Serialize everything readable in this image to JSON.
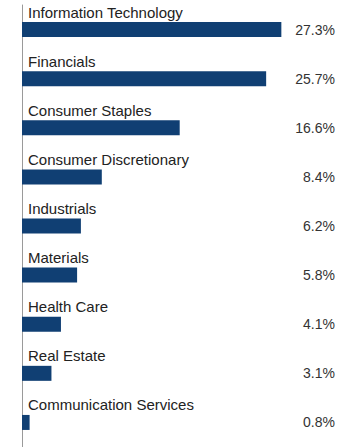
{
  "chart_data": {
    "type": "bar",
    "orientation": "horizontal",
    "categories": [
      "Information Technology",
      "Financials",
      "Consumer Staples",
      "Consumer Discretionary",
      "Industrials",
      "Materials",
      "Health Care",
      "Real Estate",
      "Communication Services"
    ],
    "values": [
      27.3,
      25.7,
      16.6,
      8.4,
      6.2,
      5.8,
      4.1,
      3.1,
      0.8
    ],
    "value_labels": [
      "27.3%",
      "25.7%",
      "16.6%",
      "8.4%",
      "6.2%",
      "5.8%",
      "4.1%",
      "3.1%",
      "0.8%"
    ],
    "color": "#103f73",
    "xlim": [
      0,
      30
    ],
    "tick_labels": false,
    "grid": false,
    "data_labels": true
  }
}
